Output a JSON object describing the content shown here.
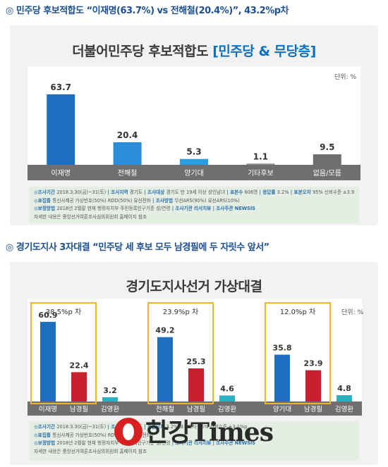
{
  "headline1": "◎ 민주당 후보적합도 “이재명(63.7%) vs 전해철(20.4%)”, 43.2%p차",
  "headline2": "◎ 경기도지사 3자대결 “민주당 세 후보 모두 남경필에 두 자릿수 앞서”",
  "chart1": {
    "title_main": "더불어민주당 후보적합도",
    "title_highlight": "[민주당 & 무당층]",
    "unit": "단위: %"
  },
  "chart2": {
    "title": "경기도지사선거 가상대결",
    "unit": "단위: %"
  },
  "notes1": [
    {
      "k1": "조사기간",
      "v1": "2018.3.30(금)~31(토)",
      "k2": "조사지역",
      "v2": "경기도",
      "k3": "조사대상",
      "v3": "경기도 만 19세 이상 성인남녀",
      "k4": "표본수",
      "v4": "606명",
      "k5": "응답률",
      "v5": "3.2%",
      "k6": "표본오차",
      "v6": "95% 신뢰수준 ±3.9%p"
    },
    {
      "k1": "표집틀",
      "v1": "통신사제공 가상번호(50%) RDD(50%) 유선전화",
      "k2": "조사방법",
      "v2": "무선ARS(90%) 유선ARS(10%)"
    },
    {
      "k1": "보정방법",
      "v1": "2018년 2월말 현재 행정자치부 주민등록인구기준 성/연령",
      "k2": "조사기관",
      "v2": "리서치뷰",
      "k3": "조사주관",
      "v3": "NEWSIS"
    },
    {
      "k1": "",
      "v1": "자세한 내용은 중앙선거여론조사심의위원회 홈페이지 참조"
    }
  ],
  "notes2": [
    {
      "k1": "조사기간",
      "v1": "2018.3.30(금)~31(토)",
      "k2": "조사지역",
      "v2": "경기도",
      "k3": "표본오차",
      "v3": "3.2% 표본오차 95% 신뢰수준 ±3.1%p"
    },
    {
      "k1": "표집틀",
      "v1": "통신사제공 가상번호(50%) RDD(50%) 유선전화"
    },
    {
      "k1": "보정방법",
      "v1": "2018년 2월말 현재 행정자치부 주민등록인구기준 성/연령",
      "k2": "조사기관",
      "v2": "리서치뷰",
      "k3": "조사주관",
      "v3": "NEWSIS"
    },
    {
      "k1": "",
      "v1": "자세한 내용은 중앙선거여론조사심의위원회 홈페이지 참조"
    }
  ],
  "watermark": "한강Times",
  "chart_data": [
    {
      "type": "bar",
      "title": "더불어민주당 후보적합도 [민주당 & 무당층]",
      "unit": "단위: %",
      "categories": [
        "이재명",
        "전해철",
        "양기대",
        "기타후보",
        "없음/모름"
      ],
      "values": [
        63.7,
        20.4,
        5.3,
        1.1,
        9.5
      ],
      "colors": [
        "#1f6fc0",
        "#2a8fd8",
        "#2a9fe0",
        "#8a8a8a",
        "#6e6e6e"
      ],
      "ylim": [
        0,
        70
      ],
      "grid": false
    },
    {
      "type": "bar",
      "title": "경기도지사선거 가상대결",
      "unit": "단위: %",
      "groups": [
        {
          "label": "38.5%p 차",
          "categories": [
            "이재명",
            "남경필",
            "김영환"
          ],
          "values": [
            60.9,
            22.4,
            3.2
          ]
        },
        {
          "label": "23.9%p 차",
          "categories": [
            "전해철",
            "남경필",
            "김영환"
          ],
          "values": [
            49.2,
            25.3,
            4.6
          ]
        },
        {
          "label": "12.0%p 차",
          "categories": [
            "양기대",
            "남경필",
            "김영환"
          ],
          "values": [
            35.8,
            23.9,
            4.8
          ]
        }
      ],
      "colors": [
        "#1f6fc0",
        "#c8202c",
        "#2ab0c0"
      ],
      "ylim": [
        0,
        70
      ],
      "grid": false
    }
  ]
}
